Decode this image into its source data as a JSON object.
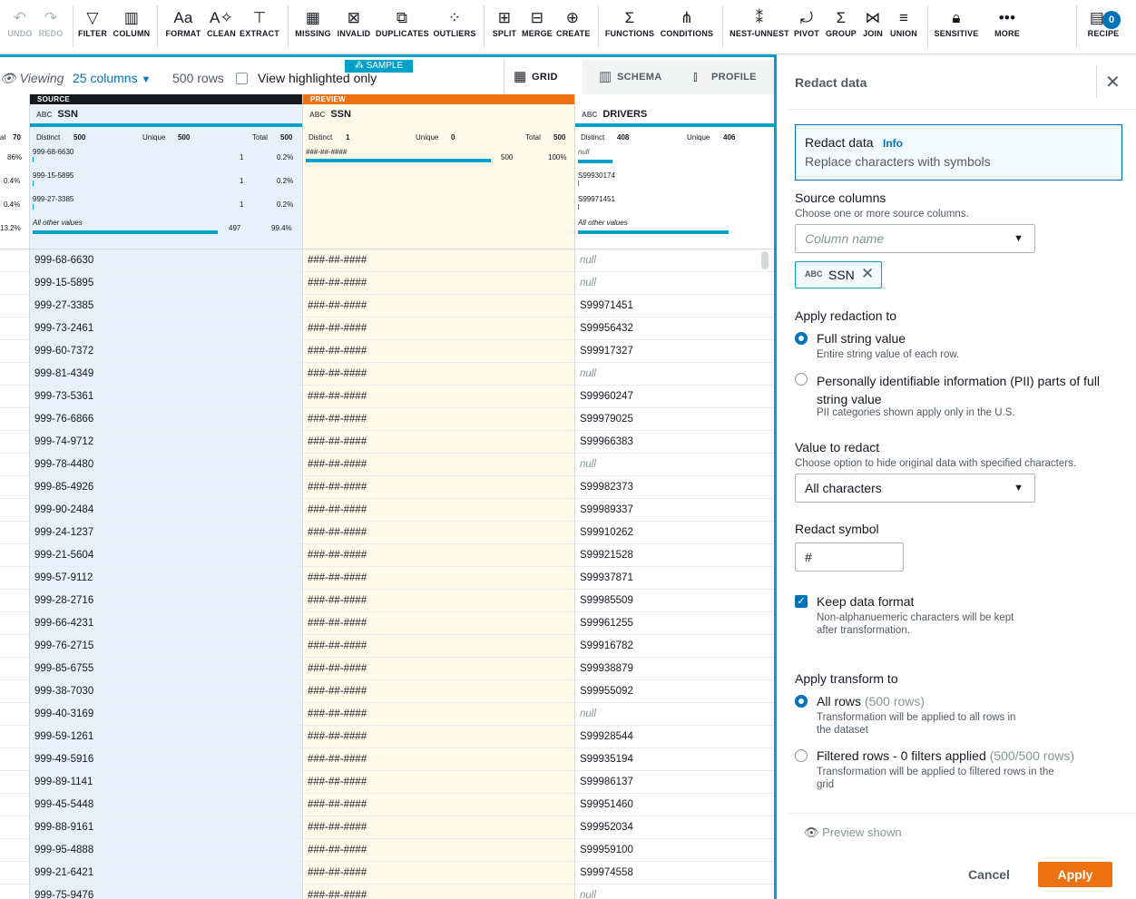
{
  "toolbar": {
    "undo": "UNDO",
    "redo": "REDO",
    "filter": "FILTER",
    "column": "COLUMN",
    "format": "FORMAT",
    "clean": "CLEAN",
    "extract": "EXTRACT",
    "missing": "MISSING",
    "invalid": "INVALID",
    "duplicates": "DUPLICATES",
    "outliers": "OUTLIERS",
    "split": "SPLIT",
    "merge": "MERGE",
    "create": "CREATE",
    "functions": "FUNCTIONS",
    "conditions": "CONDITIONS",
    "nest_unnest": "NEST-UNNEST",
    "pivot": "PIVOT",
    "group": "GROUP",
    "join": "JOIN",
    "union": "UNION",
    "sensitive": "SENSITIVE",
    "more": "MORE",
    "recipe": "RECIPE",
    "recipe_count": "0"
  },
  "viewbar": {
    "viewing": "Viewing",
    "columns": "25 columns",
    "rows": "500 rows",
    "highlight": "View highlighted only",
    "sample": "SAMPLE"
  },
  "tabs": {
    "grid": "GRID",
    "schema": "SCHEMA",
    "profile": "PROFILE"
  },
  "left_stats": {
    "total": "70",
    "p1": "86%",
    "p2": "0.4%",
    "p3": "0.4%",
    "p4": "13.2%"
  },
  "source": {
    "tag": "SOURCE",
    "abc": "ABC",
    "name": "SSN",
    "distinct_label": "Distinct",
    "distinct": "500",
    "unique_label": "Unique",
    "unique": "500",
    "total_label": "Total",
    "total": "500",
    "v1": "999-68-6630",
    "c1": "1",
    "p1": "0.2%",
    "v2": "999-15-5895",
    "c2": "1",
    "p2": "0.2%",
    "v3": "999-27-3385",
    "c3": "1",
    "p3": "0.2%",
    "other": "All other values",
    "oc": "497",
    "op": "99.4%"
  },
  "preview": {
    "tag": "PREVIEW",
    "abc": "ABC",
    "name": "SSN",
    "distinct_label": "Distinct",
    "distinct": "1",
    "unique_label": "Unique",
    "unique": "0",
    "total_label": "Total",
    "total": "500",
    "v1": "###-##-####",
    "c1": "500",
    "p1": "100%"
  },
  "drivers": {
    "abc": "ABC",
    "name": "DRIVERS",
    "distinct_label": "Distinct",
    "distinct": "408",
    "unique_label": "Unique",
    "unique": "406",
    "v1": "null",
    "v2": "S99930174",
    "v3": "S99971451",
    "other": "All other values"
  },
  "rows": [
    [
      "999-68-6630",
      "###-##-####",
      "null"
    ],
    [
      "999-15-5895",
      "###-##-####",
      "null"
    ],
    [
      "999-27-3385",
      "###-##-####",
      "S99971451"
    ],
    [
      "999-73-2461",
      "###-##-####",
      "S99956432"
    ],
    [
      "999-60-7372",
      "###-##-####",
      "S99917327"
    ],
    [
      "999-81-4349",
      "###-##-####",
      "null"
    ],
    [
      "999-73-5361",
      "###-##-####",
      "S99960247"
    ],
    [
      "999-76-6866",
      "###-##-####",
      "S99979025"
    ],
    [
      "999-74-9712",
      "###-##-####",
      "S99966383"
    ],
    [
      "999-78-4480",
      "###-##-####",
      "null"
    ],
    [
      "999-85-4926",
      "###-##-####",
      "S99982373"
    ],
    [
      "999-90-2484",
      "###-##-####",
      "S99989337"
    ],
    [
      "999-24-1237",
      "###-##-####",
      "S99910262"
    ],
    [
      "999-21-5604",
      "###-##-####",
      "S99921528"
    ],
    [
      "999-57-9112",
      "###-##-####",
      "S99937871"
    ],
    [
      "999-28-2716",
      "###-##-####",
      "S99985509"
    ],
    [
      "999-66-4231",
      "###-##-####",
      "S99961255"
    ],
    [
      "999-76-2715",
      "###-##-####",
      "S99916782"
    ],
    [
      "999-85-6755",
      "###-##-####",
      "S99938879"
    ],
    [
      "999-38-7030",
      "###-##-####",
      "S99955092"
    ],
    [
      "999-40-3169",
      "###-##-####",
      "null"
    ],
    [
      "999-59-1261",
      "###-##-####",
      "S99928544"
    ],
    [
      "999-49-5916",
      "###-##-####",
      "S99935194"
    ],
    [
      "999-89-1141",
      "###-##-####",
      "S99986137"
    ],
    [
      "999-45-5448",
      "###-##-####",
      "S99951460"
    ],
    [
      "999-88-9161",
      "###-##-####",
      "S99952034"
    ],
    [
      "999-95-4888",
      "###-##-####",
      "S99959100"
    ],
    [
      "999-21-6421",
      "###-##-####",
      "S99974558"
    ],
    [
      "999-75-9476",
      "###-##-####",
      "null"
    ]
  ],
  "panel": {
    "title": "Redact data",
    "info_title": "Redact data",
    "info_link": "Info",
    "info_desc": "Replace characters with symbols",
    "src_label": "Source columns",
    "src_desc": "Choose one or more source columns.",
    "col_placeholder": "Column name",
    "chip_abc": "ABC",
    "chip": "SSN",
    "apply_label": "Apply redaction to",
    "opt_full": "Full string value",
    "opt_full_desc": "Entire string value of each row.",
    "opt_pii": "Personally identifiable information (PII) parts of full string value",
    "opt_pii_desc": "PII categories shown apply only in the U.S.",
    "value_label": "Value to redact",
    "value_desc": "Choose option to hide original data with specified characters.",
    "value_sel": "All characters",
    "symbol_label": "Redact symbol",
    "symbol": "#",
    "keep_label": "Keep data format",
    "keep_desc1": "Non-alphanuemeric characters will be kept",
    "keep_desc2": "after transformation.",
    "transform_label": "Apply transform to",
    "all_rows": "All rows",
    "all_rows_cnt": "(500 rows)",
    "all_desc1": "Transformation will be applied to all rows in",
    "all_desc2": "the dataset",
    "filtered": "Filtered rows - 0 filters applied",
    "filtered_cnt": "(500/500 rows)",
    "filt_desc1": "Transformation will be applied to filtered rows in the",
    "filt_desc2": "grid",
    "preview": "Preview shown",
    "cancel": "Cancel",
    "apply": "Apply"
  },
  "colors": {
    "accent": "#00a1c9",
    "source_bg": "#e6f1fb",
    "preview_bg": "#fefbea",
    "preview_tag": "#ec7211",
    "apply_btn": "#ec7211",
    "link": "#0073bb"
  }
}
